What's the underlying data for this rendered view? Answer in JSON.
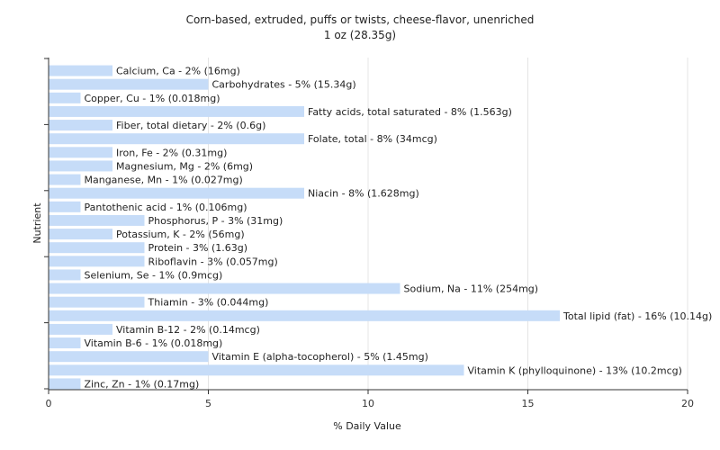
{
  "title": "Corn-based, extruded, puffs or twists, cheese-flavor, unenriched",
  "subtitle": "1 oz (28.35g)",
  "chart_data": {
    "type": "bar",
    "orientation": "horizontal",
    "xlabel": "% Daily Value",
    "ylabel": "Nutrient",
    "xlim": [
      0,
      20
    ],
    "xticks": [
      0,
      5,
      10,
      15,
      20
    ],
    "grid": true,
    "bar_color": "#c6dcf8",
    "categories": [
      "Calcium, Ca",
      "Carbohydrates",
      "Copper, Cu",
      "Fatty acids, total saturated",
      "Fiber, total dietary",
      "Folate, total",
      "Iron, Fe",
      "Magnesium, Mg",
      "Manganese, Mn",
      "Niacin",
      "Pantothenic acid",
      "Phosphorus, P",
      "Potassium, K",
      "Protein",
      "Riboflavin",
      "Selenium, Se",
      "Sodium, Na",
      "Thiamin",
      "Total lipid (fat)",
      "Vitamin B-12",
      "Vitamin B-6",
      "Vitamin E (alpha-tocopherol)",
      "Vitamin K (phylloquinone)",
      "Zinc, Zn"
    ],
    "values": [
      2,
      5,
      1,
      8,
      2,
      8,
      2,
      2,
      1,
      8,
      1,
      3,
      2,
      3,
      3,
      1,
      11,
      3,
      16,
      2,
      1,
      5,
      13,
      1
    ],
    "labels": [
      "Calcium, Ca - 2% (16mg)",
      "Carbohydrates - 5% (15.34g)",
      "Copper, Cu - 1% (0.018mg)",
      "Fatty acids, total saturated - 8% (1.563g)",
      "Fiber, total dietary - 2% (0.6g)",
      "Folate, total - 8% (34mcg)",
      "Iron, Fe - 2% (0.31mg)",
      "Magnesium, Mg - 2% (6mg)",
      "Manganese, Mn - 1% (0.027mg)",
      "Niacin - 8% (1.628mg)",
      "Pantothenic acid - 1% (0.106mg)",
      "Phosphorus, P - 3% (31mg)",
      "Potassium, K - 2% (56mg)",
      "Protein - 3% (1.63g)",
      "Riboflavin - 3% (0.057mg)",
      "Selenium, Se - 1% (0.9mcg)",
      "Sodium, Na - 11% (254mg)",
      "Thiamin - 3% (0.044mg)",
      "Total lipid (fat) - 16% (10.14g)",
      "Vitamin B-12 - 2% (0.14mcg)",
      "Vitamin B-6 - 1% (0.018mg)",
      "Vitamin E (alpha-tocopherol) - 5% (1.45mg)",
      "Vitamin K (phylloquinone) - 13% (10.2mcg)",
      "Zinc, Zn - 1% (0.17mg)"
    ]
  }
}
